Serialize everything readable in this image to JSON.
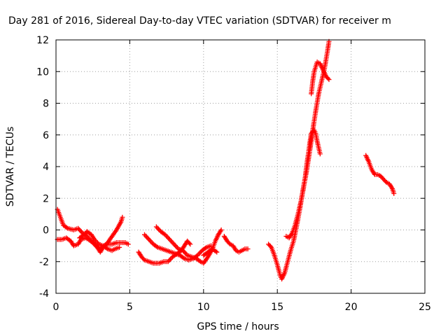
{
  "chart_data": {
    "type": "scatter",
    "title": "Day 281 of 2016, Sidereal Day-to-day VTEC variation (SDTVAR) for receiver m",
    "xlabel": "GPS time / hours",
    "ylabel": "SDTVAR / TECUs",
    "xlim": [
      0,
      25
    ],
    "ylim": [
      -4,
      12
    ],
    "xticks": [
      0,
      5,
      10,
      15,
      20,
      25
    ],
    "yticks": [
      -4,
      -2,
      0,
      2,
      4,
      6,
      8,
      10,
      12
    ],
    "grid": true,
    "marker": "plus",
    "color": "#ff0000",
    "series": [
      {
        "points": [
          [
            0.1,
            1.3
          ],
          [
            0.3,
            0.8
          ],
          [
            0.5,
            0.3
          ],
          [
            0.8,
            0.1
          ],
          [
            1.2,
            0.0
          ],
          [
            1.5,
            0.1
          ],
          [
            1.8,
            -0.2
          ],
          [
            2.1,
            -0.4
          ],
          [
            2.4,
            -0.7
          ],
          [
            2.7,
            -1.0
          ],
          [
            3.0,
            -1.2
          ],
          [
            3.2,
            -1.0
          ],
          [
            3.5,
            -0.9
          ],
          [
            3.8,
            -0.9
          ],
          [
            4.1,
            -0.8
          ],
          [
            4.4,
            -0.8
          ],
          [
            4.7,
            -0.8
          ],
          [
            4.9,
            -0.9
          ]
        ]
      },
      {
        "points": [
          [
            0.1,
            -0.6
          ],
          [
            0.4,
            -0.6
          ],
          [
            0.7,
            -0.5
          ],
          [
            1.0,
            -0.7
          ],
          [
            1.2,
            -1.0
          ],
          [
            1.5,
            -0.9
          ],
          [
            1.7,
            -0.6
          ],
          [
            2.0,
            -0.5
          ],
          [
            2.2,
            -0.6
          ],
          [
            2.5,
            -0.8
          ],
          [
            2.8,
            -1.1
          ],
          [
            3.0,
            -1.4
          ],
          [
            3.2,
            -1.1
          ],
          [
            3.5,
            -0.8
          ],
          [
            3.8,
            -0.4
          ],
          [
            4.1,
            0.0
          ],
          [
            4.4,
            0.5
          ],
          [
            4.5,
            0.8
          ]
        ]
      },
      {
        "points": [
          [
            1.6,
            -0.5
          ],
          [
            1.9,
            -0.3
          ],
          [
            2.1,
            -0.1
          ],
          [
            2.4,
            -0.3
          ],
          [
            2.6,
            -0.6
          ],
          [
            2.9,
            -0.9
          ],
          [
            3.2,
            -1.0
          ],
          [
            3.5,
            -1.2
          ],
          [
            3.8,
            -1.3
          ],
          [
            4.0,
            -1.2
          ],
          [
            4.3,
            -1.1
          ]
        ]
      },
      {
        "points": [
          [
            5.6,
            -1.4
          ],
          [
            5.8,
            -1.7
          ],
          [
            6.0,
            -1.9
          ],
          [
            6.3,
            -2.0
          ],
          [
            6.6,
            -2.1
          ],
          [
            7.0,
            -2.1
          ],
          [
            7.3,
            -2.0
          ],
          [
            7.6,
            -2.0
          ],
          [
            7.9,
            -1.7
          ],
          [
            8.2,
            -1.5
          ],
          [
            8.5,
            -1.3
          ],
          [
            8.7,
            -1.0
          ],
          [
            8.9,
            -0.7
          ],
          [
            9.1,
            -0.9
          ]
        ]
      },
      {
        "points": [
          [
            6.0,
            -0.3
          ],
          [
            6.3,
            -0.6
          ],
          [
            6.6,
            -0.9
          ],
          [
            6.9,
            -1.1
          ],
          [
            7.2,
            -1.2
          ],
          [
            7.5,
            -1.3
          ],
          [
            7.8,
            -1.4
          ],
          [
            8.1,
            -1.5
          ],
          [
            8.4,
            -1.6
          ],
          [
            8.7,
            -1.8
          ],
          [
            9.0,
            -1.9
          ],
          [
            9.3,
            -1.8
          ],
          [
            9.6,
            -1.6
          ],
          [
            9.9,
            -1.3
          ],
          [
            10.2,
            -1.1
          ],
          [
            10.5,
            -1.0
          ]
        ]
      },
      {
        "points": [
          [
            6.8,
            0.2
          ],
          [
            7.1,
            -0.1
          ],
          [
            7.4,
            -0.3
          ],
          [
            7.7,
            -0.6
          ],
          [
            8.0,
            -0.9
          ],
          [
            8.3,
            -1.2
          ],
          [
            8.6,
            -1.3
          ],
          [
            8.9,
            -1.6
          ],
          [
            9.2,
            -1.7
          ],
          [
            9.5,
            -1.8
          ],
          [
            9.8,
            -2.0
          ],
          [
            10.0,
            -2.1
          ],
          [
            10.3,
            -1.7
          ],
          [
            10.6,
            -1.2
          ],
          [
            10.8,
            -0.7
          ],
          [
            11.0,
            -0.3
          ],
          [
            11.2,
            0.0
          ]
        ]
      },
      {
        "points": [
          [
            10.0,
            -1.6
          ],
          [
            10.3,
            -1.4
          ],
          [
            10.6,
            -1.2
          ],
          [
            10.9,
            -1.4
          ]
        ]
      },
      {
        "points": [
          [
            11.4,
            -0.4
          ],
          [
            11.6,
            -0.7
          ],
          [
            11.8,
            -0.9
          ],
          [
            12.0,
            -1.0
          ],
          [
            12.2,
            -1.3
          ],
          [
            12.4,
            -1.4
          ],
          [
            12.6,
            -1.3
          ],
          [
            12.8,
            -1.2
          ],
          [
            13.0,
            -1.2
          ]
        ]
      },
      {
        "points": [
          [
            14.4,
            -0.9
          ],
          [
            14.6,
            -1.1
          ],
          [
            14.8,
            -1.6
          ],
          [
            15.0,
            -2.2
          ],
          [
            15.2,
            -2.9
          ],
          [
            15.3,
            -3.1
          ],
          [
            15.5,
            -2.7
          ],
          [
            15.7,
            -2.0
          ],
          [
            15.9,
            -1.3
          ],
          [
            16.1,
            -0.7
          ],
          [
            16.3,
            0.2
          ],
          [
            16.5,
            1.2
          ],
          [
            16.7,
            2.3
          ],
          [
            16.9,
            3.4
          ],
          [
            17.0,
            4.2
          ],
          [
            17.1,
            4.8
          ],
          [
            17.2,
            5.5
          ],
          [
            17.3,
            6.1
          ],
          [
            17.5,
            6.3
          ],
          [
            17.6,
            6.1
          ],
          [
            17.7,
            5.6
          ],
          [
            17.8,
            5.2
          ],
          [
            17.9,
            4.8
          ]
        ]
      },
      {
        "points": [
          [
            15.6,
            -0.4
          ],
          [
            15.8,
            -0.5
          ],
          [
            16.0,
            -0.2
          ],
          [
            16.2,
            0.3
          ],
          [
            16.4,
            1.0
          ],
          [
            16.6,
            1.8
          ],
          [
            16.8,
            2.8
          ],
          [
            17.0,
            3.8
          ],
          [
            17.2,
            5.0
          ],
          [
            17.4,
            6.3
          ],
          [
            17.6,
            7.5
          ],
          [
            17.8,
            8.6
          ],
          [
            18.0,
            9.4
          ],
          [
            18.2,
            10.2
          ],
          [
            18.4,
            11.3
          ],
          [
            18.5,
            11.9
          ]
        ]
      },
      {
        "points": [
          [
            17.3,
            8.6
          ],
          [
            17.4,
            9.4
          ],
          [
            17.5,
            10.0
          ],
          [
            17.7,
            10.6
          ],
          [
            17.9,
            10.5
          ],
          [
            18.1,
            10.1
          ],
          [
            18.3,
            9.7
          ],
          [
            18.5,
            9.5
          ]
        ]
      },
      {
        "points": [
          [
            21.0,
            4.7
          ],
          [
            21.2,
            4.3
          ],
          [
            21.4,
            3.8
          ],
          [
            21.6,
            3.5
          ],
          [
            21.8,
            3.5
          ],
          [
            22.0,
            3.4
          ],
          [
            22.2,
            3.2
          ],
          [
            22.4,
            3.0
          ],
          [
            22.6,
            2.9
          ],
          [
            22.8,
            2.6
          ],
          [
            22.9,
            2.3
          ]
        ]
      }
    ]
  }
}
